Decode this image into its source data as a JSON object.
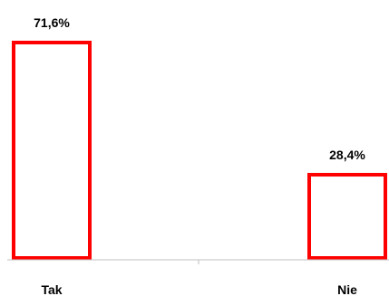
{
  "chart_data": {
    "type": "bar",
    "categories": [
      "Tak",
      "Nie"
    ],
    "values": [
      71.6,
      28.4
    ],
    "value_labels": [
      "71,6%",
      "28,4%"
    ],
    "ylim": [
      0,
      100
    ],
    "grid": false,
    "legend": "none",
    "colors": {
      "bar_outline": "#ff0000",
      "bar_fill": "#ffffff",
      "axis": "#bfbfbf",
      "text": "#000000"
    }
  }
}
